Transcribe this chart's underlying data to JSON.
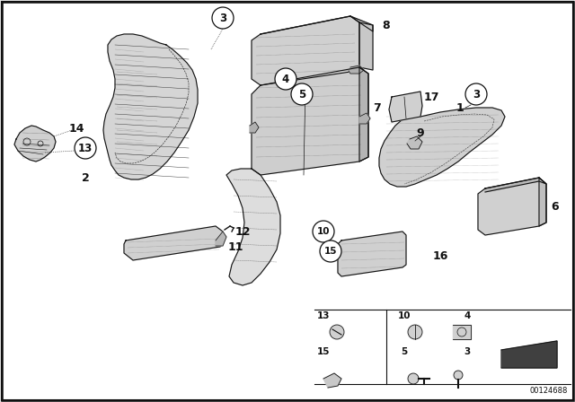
{
  "bg_color": "#e8e8e8",
  "content_bg": "#f5f5f0",
  "line_color": "#111111",
  "fill_light": "#d8d8d8",
  "fill_mid": "#c0c0c0",
  "fill_dark": "#a0a0a0",
  "watermark": "00124688",
  "bold_labels": [
    "14",
    "8",
    "17",
    "7",
    "9",
    "1",
    "2",
    "16",
    "11",
    "12"
  ],
  "circle_labels": [
    "3",
    "4",
    "5",
    "10",
    "13",
    "15"
  ]
}
